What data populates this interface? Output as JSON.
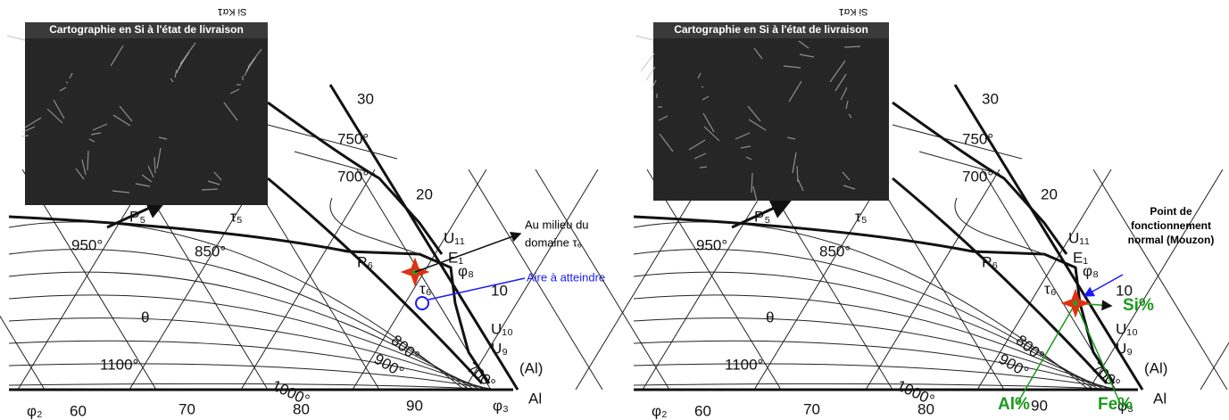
{
  "panels": [
    {
      "inset": {
        "detector": "Si Kα1",
        "caption": "Cartographie en Si à l'état de livraison"
      },
      "labels": [
        "30",
        "750°",
        "700°",
        "20",
        "P₅",
        "τ₅",
        "P₆",
        "U₁₁",
        "E₁",
        "φ₈",
        "10",
        "τ₆",
        "950°",
        "850°",
        "θ",
        "900°",
        "800°",
        "1100°",
        "1000°",
        "700°",
        "U₁₀",
        "U₉",
        "(Al)",
        "φ₂",
        "60",
        "70",
        "80",
        "90",
        "φ₃",
        "Al"
      ],
      "annotations": {
        "middle": [
          "Au milieu du",
          "domaine τ₆"
        ],
        "target": "Aire à atteindre"
      }
    },
    {
      "inset": {
        "detector": "Si Kα1",
        "caption": "Cartographie en Si à l'état de livraison"
      },
      "labels": [
        "30",
        "750°",
        "700°",
        "20",
        "P₅",
        "τ₅",
        "P₆",
        "U₁₁",
        "E₁",
        "φ₈",
        "10",
        "τ₆",
        "950°",
        "850°",
        "θ",
        "900°",
        "800°",
        "1100°",
        "1000°",
        "700°",
        "U₁₀",
        "U₉",
        "(Al)",
        "φ₂",
        "60",
        "70",
        "80",
        "90",
        "φ₃",
        "Al"
      ],
      "annotations": {
        "point": [
          "Point de",
          "fonctionnement",
          "normal (Mouzon)"
        ],
        "si": "Si%",
        "al": "Al%",
        "fe": "Fe%"
      }
    }
  ]
}
